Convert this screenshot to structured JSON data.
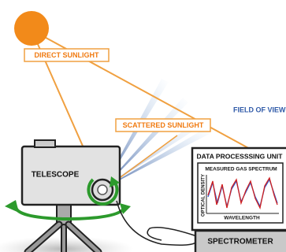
{
  "labels": {
    "direct_sunlight": "DIRECT SUNLIGHT",
    "scattered_sunlight": "SCATTERED SUNLIGHT",
    "field_of_view": "FIELD OF VIEW",
    "telescope": "TELESCOPE"
  },
  "data_unit": {
    "title": "DATA PROCESSSING UNIT",
    "chart_title": "MEASURED GAS SPECTRUM",
    "y_label": "OPTICAL DENSITY",
    "x_label": "WAVELENGTH"
  },
  "spectrometer": "SPECTROMETER"
}
